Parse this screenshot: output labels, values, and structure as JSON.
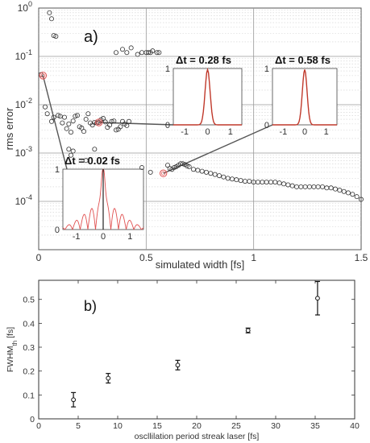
{
  "chart_data": [
    {
      "panel": "a)",
      "type": "scatter",
      "xlabel": "simulated width [fs]",
      "ylabel": "rms error",
      "xlim": [
        0,
        1.5
      ],
      "ylim_log10": [
        -5,
        0
      ],
      "yscale": "log",
      "grid": true,
      "x_ticks": [
        "0",
        "0.5",
        "1",
        "1.5"
      ],
      "y_ticks": [
        {
          "base": "10",
          "exp": "0"
        },
        {
          "base": "10",
          "exp": "-1"
        },
        {
          "base": "10",
          "exp": "-2"
        },
        {
          "base": "10",
          "exp": "-3"
        },
        {
          "base": "10",
          "exp": "-4"
        }
      ],
      "marker_color": "#333333",
      "highlight_color": "#e05050",
      "points": [
        [
          0.01,
          0.042
        ],
        [
          0.05,
          0.8
        ],
        [
          0.06,
          0.6
        ],
        [
          0.07,
          0.27
        ],
        [
          0.08,
          0.26
        ],
        [
          0.03,
          0.009
        ],
        [
          0.04,
          0.0065
        ],
        [
          0.06,
          0.0045
        ],
        [
          0.07,
          0.0055
        ],
        [
          0.09,
          0.006
        ],
        [
          0.1,
          0.0058
        ],
        [
          0.11,
          0.0042
        ],
        [
          0.12,
          0.0055
        ],
        [
          0.13,
          0.0032
        ],
        [
          0.14,
          0.004
        ],
        [
          0.15,
          0.0027
        ],
        [
          0.16,
          0.0046
        ],
        [
          0.17,
          0.0058
        ],
        [
          0.18,
          0.006
        ],
        [
          0.19,
          0.0035
        ],
        [
          0.2,
          0.0033
        ],
        [
          0.21,
          0.0028
        ],
        [
          0.22,
          0.005
        ],
        [
          0.23,
          0.0065
        ],
        [
          0.24,
          0.0042
        ],
        [
          0.25,
          0.0038
        ],
        [
          0.26,
          0.0043
        ],
        [
          0.27,
          0.0042
        ],
        [
          0.28,
          0.0043
        ],
        [
          0.29,
          0.0049
        ],
        [
          0.3,
          0.0052
        ],
        [
          0.31,
          0.0044
        ],
        [
          0.32,
          0.0034
        ],
        [
          0.33,
          0.0038
        ],
        [
          0.34,
          0.0045
        ],
        [
          0.35,
          0.0046
        ],
        [
          0.36,
          0.003
        ],
        [
          0.37,
          0.0031
        ],
        [
          0.38,
          0.0035
        ],
        [
          0.39,
          0.0045
        ],
        [
          0.4,
          0.004
        ],
        [
          0.41,
          0.0037
        ],
        [
          0.42,
          0.0045
        ],
        [
          0.14,
          0.0012
        ],
        [
          0.15,
          0.0009
        ],
        [
          0.16,
          0.0011
        ],
        [
          0.22,
          0.0007
        ],
        [
          0.26,
          0.0012
        ],
        [
          0.48,
          0.0005
        ],
        [
          0.52,
          0.0004
        ],
        [
          0.36,
          0.12
        ],
        [
          0.39,
          0.14
        ],
        [
          0.41,
          0.12
        ],
        [
          0.43,
          0.15
        ],
        [
          0.46,
          0.11
        ],
        [
          0.48,
          0.12
        ],
        [
          0.5,
          0.12
        ],
        [
          0.51,
          0.12
        ],
        [
          0.52,
          0.12
        ],
        [
          0.53,
          0.13
        ],
        [
          0.55,
          0.12
        ],
        [
          0.56,
          0.12
        ],
        [
          0.6,
          0.00056
        ],
        [
          0.61,
          0.00048
        ],
        [
          0.62,
          0.00046
        ],
        [
          0.63,
          0.0005
        ],
        [
          0.64,
          0.00052
        ],
        [
          0.65,
          0.00056
        ],
        [
          0.66,
          0.0006
        ],
        [
          0.67,
          0.0006
        ],
        [
          0.68,
          0.00058
        ],
        [
          0.69,
          0.00054
        ],
        [
          0.7,
          0.00052
        ],
        [
          0.72,
          0.00046
        ],
        [
          0.74,
          0.00044
        ],
        [
          0.76,
          0.00042
        ],
        [
          0.78,
          0.0004
        ],
        [
          0.8,
          0.00038
        ],
        [
          0.82,
          0.00036
        ],
        [
          0.84,
          0.00034
        ],
        [
          0.86,
          0.00032
        ],
        [
          0.88,
          0.0003
        ],
        [
          0.9,
          0.00029
        ],
        [
          0.92,
          0.00028
        ],
        [
          0.94,
          0.00027
        ],
        [
          0.96,
          0.00026
        ],
        [
          0.98,
          0.00026
        ],
        [
          1.0,
          0.00025
        ],
        [
          1.02,
          0.00025
        ],
        [
          1.04,
          0.00025
        ],
        [
          1.06,
          0.00025
        ],
        [
          1.08,
          0.00025
        ],
        [
          1.1,
          0.00025
        ],
        [
          1.12,
          0.00024
        ],
        [
          1.14,
          0.00023
        ],
        [
          1.16,
          0.00022
        ],
        [
          1.18,
          0.00021
        ],
        [
          1.2,
          0.0002
        ],
        [
          1.22,
          0.0002
        ],
        [
          1.24,
          0.0002
        ],
        [
          1.26,
          0.0002
        ],
        [
          1.28,
          0.0002
        ],
        [
          1.3,
          0.0002
        ],
        [
          1.32,
          0.0002
        ],
        [
          1.34,
          0.00019
        ],
        [
          1.36,
          0.00019
        ],
        [
          1.38,
          0.00018
        ],
        [
          1.4,
          0.00017
        ],
        [
          1.42,
          0.00016
        ],
        [
          1.44,
          0.00015
        ],
        [
          1.46,
          0.00014
        ],
        [
          1.48,
          0.000125
        ],
        [
          1.5,
          0.00011
        ]
      ],
      "highlighted_points": [
        [
          0.02,
          0.04
        ],
        [
          0.28,
          0.0043
        ],
        [
          0.58,
          0.00038
        ]
      ],
      "insets": [
        {
          "label": "Δt = 0.02 fs",
          "x_ticks": [
            "-1",
            "0",
            "1"
          ],
          "y_ticks": [
            "0",
            "1"
          ],
          "pulse": "spiky"
        },
        {
          "label": "Δt = 0.28 fs",
          "x_ticks": [
            "-1",
            "0",
            "1"
          ],
          "y_ticks": [
            "0",
            "1"
          ],
          "pulse": "gaussian"
        },
        {
          "label": "Δt = 0.58 fs",
          "x_ticks": [
            "-1",
            "0",
            "1"
          ],
          "y_ticks": [
            "0",
            "1"
          ],
          "pulse": "gaussian"
        }
      ]
    },
    {
      "panel": "b)",
      "type": "scatter",
      "error_bars": true,
      "xlabel": "oscllilation period streak laser [fs]",
      "ylabel_main": "FWHM",
      "ylabel_sub": "th",
      "ylabel_unit": " [fs]",
      "xlim": [
        0,
        40
      ],
      "ylim": [
        0,
        0.58
      ],
      "x_ticks": [
        "0",
        "5",
        "10",
        "15",
        "20",
        "25",
        "30",
        "35",
        "40"
      ],
      "y_ticks": [
        "0",
        "0.1",
        "0.2",
        "0.3",
        "0.4",
        "0.5"
      ],
      "x": [
        4.4,
        8.8,
        17.6,
        26.5,
        35.3
      ],
      "y": [
        0.08,
        0.17,
        0.225,
        0.37,
        0.505
      ],
      "err": [
        0.03,
        0.02,
        0.02,
        0.01,
        0.07
      ]
    }
  ]
}
